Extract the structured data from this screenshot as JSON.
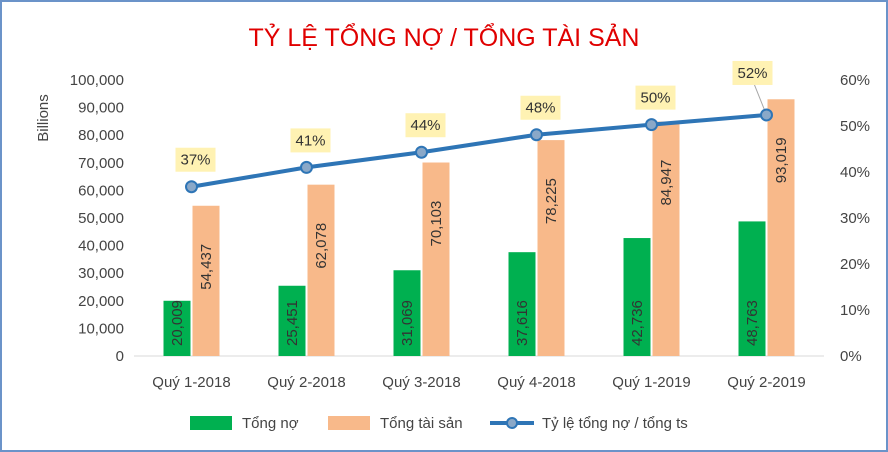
{
  "chart_data": {
    "type": "bar",
    "title": "TỶ LỆ TỔNG NỢ / TỔNG TÀI SẢN",
    "ylabel": "Billions",
    "categories": [
      "Quý 1-2018",
      "Quý 2-2018",
      "Quý 3-2018",
      "Quý 4-2018",
      "Quý 1-2019",
      "Quý 2-2019"
    ],
    "ylim": [
      0,
      100000
    ],
    "y_ticks": [
      "0",
      "10,000",
      "20,000",
      "30,000",
      "40,000",
      "50,000",
      "60,000",
      "70,000",
      "80,000",
      "90,000",
      "100,000"
    ],
    "y2lim": [
      0,
      60
    ],
    "y2_ticks": [
      "0%",
      "10%",
      "20%",
      "30%",
      "40%",
      "50%",
      "60%"
    ],
    "grid": false,
    "legend_position": "bottom",
    "series": [
      {
        "name": "Tổng nợ",
        "type": "bar",
        "axis": "left",
        "color": "#00b050",
        "values": [
          20009,
          25451,
          31069,
          37616,
          42736,
          48763
        ],
        "labels": [
          "20,009",
          "25,451",
          "31,069",
          "37,616",
          "42,736",
          "48,763"
        ]
      },
      {
        "name": "Tổng tài sản",
        "type": "bar",
        "axis": "left",
        "color": "#f8b98a",
        "values": [
          54437,
          62078,
          70103,
          78225,
          84947,
          93019
        ],
        "labels": [
          "54,437",
          "62,078",
          "70,103",
          "78,225",
          "84,947",
          "93,019"
        ]
      },
      {
        "name": "Tỷ lệ tổng nợ / tổng ts",
        "type": "line",
        "axis": "right",
        "color": "#2e75b6",
        "marker_color": "#8aa8c8",
        "values": [
          36.8,
          41.0,
          44.3,
          48.1,
          50.3,
          52.4
        ],
        "labels": [
          "37%",
          "41%",
          "44%",
          "48%",
          "50%",
          "52%"
        ],
        "label_bg": "#fff2b3"
      }
    ]
  }
}
